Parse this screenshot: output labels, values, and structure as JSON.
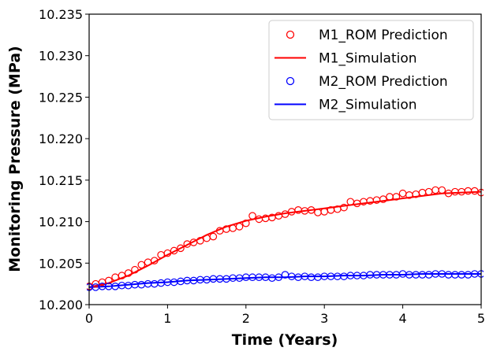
{
  "chart_data": {
    "type": "scatter",
    "xlabel": "Time (Years)",
    "ylabel": "Monitoring Pressure (MPa)",
    "xlim": [
      0,
      5
    ],
    "ylim": [
      10.2,
      10.235
    ],
    "xticks": [
      0,
      1,
      2,
      3,
      4,
      5
    ],
    "xtick_labels": [
      "0",
      "1",
      "2",
      "3",
      "4",
      "5"
    ],
    "yticks": [
      10.2,
      10.205,
      10.21,
      10.215,
      10.22,
      10.225,
      10.23,
      10.235
    ],
    "ytick_labels": [
      "10.200",
      "10.205",
      "10.210",
      "10.215",
      "10.220",
      "10.225",
      "10.230",
      "10.235"
    ],
    "grid": false,
    "legend_position": "top-right",
    "series": [
      {
        "name": "M1_ROM Prediction",
        "kind": "scatter",
        "color": "#ff0000",
        "x": [
          0.0,
          0.083,
          0.167,
          0.25,
          0.333,
          0.417,
          0.5,
          0.583,
          0.667,
          0.75,
          0.833,
          0.917,
          1.0,
          1.083,
          1.167,
          1.25,
          1.333,
          1.417,
          1.5,
          1.583,
          1.667,
          1.75,
          1.833,
          1.917,
          2.0,
          2.083,
          2.167,
          2.25,
          2.333,
          2.417,
          2.5,
          2.583,
          2.667,
          2.75,
          2.833,
          2.917,
          3.0,
          3.083,
          3.167,
          3.25,
          3.333,
          3.417,
          3.5,
          3.583,
          3.667,
          3.75,
          3.833,
          3.917,
          4.0,
          4.083,
          4.167,
          4.25,
          4.333,
          4.417,
          4.5,
          4.583,
          4.667,
          4.75,
          4.833,
          4.917,
          5.0
        ],
        "y": [
          10.2022,
          10.2025,
          10.2027,
          10.2029,
          10.2033,
          10.2035,
          10.2038,
          10.2042,
          10.2048,
          10.2051,
          10.2053,
          10.206,
          10.2062,
          10.2065,
          10.2068,
          10.2073,
          10.2075,
          10.2077,
          10.208,
          10.2082,
          10.2089,
          10.2091,
          10.2092,
          10.2094,
          10.2098,
          10.2107,
          10.2103,
          10.2104,
          10.2105,
          10.2107,
          10.2109,
          10.2112,
          10.2114,
          10.2113,
          10.2114,
          10.2111,
          10.2112,
          10.2114,
          10.2115,
          10.2117,
          10.2124,
          10.2122,
          10.2124,
          10.2125,
          10.2126,
          10.2127,
          10.213,
          10.213,
          10.2134,
          10.2132,
          10.2133,
          10.2135,
          10.2136,
          10.2138,
          10.2138,
          10.2134,
          10.2136,
          10.2136,
          10.2137,
          10.2137,
          10.2135
        ]
      },
      {
        "name": "M1_Simulation",
        "kind": "line",
        "color": "#ff0000",
        "x": [
          0.0,
          0.25,
          0.5,
          0.75,
          1.0,
          1.25,
          1.5,
          1.75,
          2.0,
          2.25,
          2.5,
          2.75,
          3.0,
          3.25,
          3.5,
          3.75,
          4.0,
          4.25,
          4.5,
          4.75,
          5.0
        ],
        "y": [
          10.2021,
          10.2026,
          10.2035,
          10.2047,
          10.206,
          10.2072,
          10.2084,
          10.2094,
          10.2101,
          10.2106,
          10.211,
          10.2113,
          10.2116,
          10.2119,
          10.2122,
          10.2125,
          10.2128,
          10.2131,
          10.2134,
          10.2135,
          10.2136
        ]
      },
      {
        "name": "M2_ROM Prediction",
        "kind": "scatter",
        "color": "#0000ff",
        "x": [
          0.0,
          0.083,
          0.167,
          0.25,
          0.333,
          0.417,
          0.5,
          0.583,
          0.667,
          0.75,
          0.833,
          0.917,
          1.0,
          1.083,
          1.167,
          1.25,
          1.333,
          1.417,
          1.5,
          1.583,
          1.667,
          1.75,
          1.833,
          1.917,
          2.0,
          2.083,
          2.167,
          2.25,
          2.333,
          2.417,
          2.5,
          2.583,
          2.667,
          2.75,
          2.833,
          2.917,
          3.0,
          3.083,
          3.167,
          3.25,
          3.333,
          3.417,
          3.5,
          3.583,
          3.667,
          3.75,
          3.833,
          3.917,
          4.0,
          4.083,
          4.167,
          4.25,
          4.333,
          4.417,
          4.5,
          4.583,
          4.667,
          4.75,
          4.833,
          4.917,
          5.0
        ],
        "y": [
          10.2021,
          10.2021,
          10.2022,
          10.2022,
          10.2022,
          10.2023,
          10.2023,
          10.2024,
          10.2024,
          10.2025,
          10.2025,
          10.2026,
          10.2027,
          10.2027,
          10.2028,
          10.2029,
          10.2029,
          10.203,
          10.203,
          10.2031,
          10.2031,
          10.2031,
          10.2032,
          10.2032,
          10.2033,
          10.2033,
          10.2033,
          10.2033,
          10.2032,
          10.2033,
          10.2036,
          10.2034,
          10.2033,
          10.2034,
          10.2033,
          10.2033,
          10.2034,
          10.2034,
          10.2034,
          10.2034,
          10.2035,
          10.2035,
          10.2035,
          10.2036,
          10.2036,
          10.2036,
          10.2036,
          10.2036,
          10.2037,
          10.2036,
          10.2036,
          10.2036,
          10.2036,
          10.2037,
          10.2037,
          10.2036,
          10.2036,
          10.2036,
          10.2036,
          10.2037,
          10.2037
        ]
      },
      {
        "name": "M2_Simulation",
        "kind": "line",
        "color": "#0000ff",
        "x": [
          0.0,
          0.25,
          0.5,
          0.75,
          1.0,
          1.25,
          1.5,
          1.75,
          2.0,
          2.25,
          2.5,
          2.75,
          3.0,
          3.25,
          3.5,
          3.75,
          4.0,
          4.25,
          4.5,
          4.75,
          5.0
        ],
        "y": [
          10.2021,
          10.2022,
          10.2024,
          10.2026,
          10.2027,
          10.2029,
          10.203,
          10.2031,
          10.2032,
          10.2033,
          10.2033,
          10.2034,
          10.2034,
          10.2035,
          10.2035,
          10.2036,
          10.2036,
          10.2037,
          10.2037,
          10.2037,
          10.2037
        ]
      }
    ]
  }
}
